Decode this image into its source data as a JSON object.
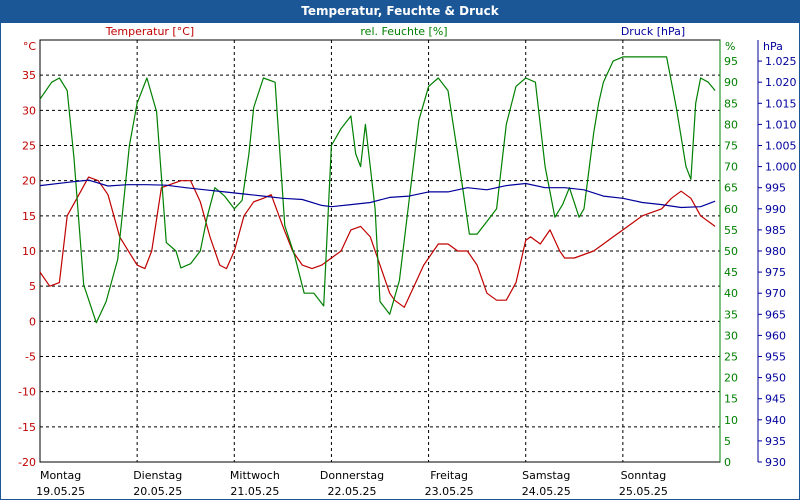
{
  "window": {
    "title": "Temperatur, Feuchte & Druck"
  },
  "colors": {
    "temperature": "#c00000",
    "humidity": "#008000",
    "pressure": "#00009b",
    "grid": "#000000",
    "title_bg": "#1b5796"
  },
  "chart_data": {
    "type": "line",
    "title": "Temperatur, Feuchte & Druck",
    "legend": [
      "Temperatur [°C]",
      "rel. Feuchte [%]",
      "Druck [hPa]"
    ],
    "x_days": [
      {
        "day": "Montag",
        "date": "19.05.25"
      },
      {
        "day": "Dienstag",
        "date": "20.05.25"
      },
      {
        "day": "Mittwoch",
        "date": "21.05.25"
      },
      {
        "day": "Donnerstag",
        "date": "22.05.25"
      },
      {
        "day": "Freitag",
        "date": "23.05.25"
      },
      {
        "day": "Samstag",
        "date": "24.05.25"
      },
      {
        "day": "Sonntag",
        "date": "25.05.25"
      }
    ],
    "xlim": [
      0,
      7
    ],
    "axes": {
      "temperature": {
        "unit": "°C",
        "ylim": [
          -20,
          40
        ],
        "ticks": [
          -20,
          -15,
          -10,
          -5,
          0,
          5,
          10,
          15,
          20,
          25,
          30,
          35
        ]
      },
      "humidity": {
        "unit": "%",
        "ylim": [
          0,
          100
        ],
        "ticks": [
          0,
          5,
          10,
          15,
          20,
          25,
          30,
          35,
          40,
          45,
          50,
          55,
          60,
          65,
          70,
          75,
          80,
          85,
          90,
          95
        ]
      },
      "pressure": {
        "unit": "hPa",
        "ylim": [
          930,
          1030
        ],
        "ticks": [
          "930",
          "935",
          "940",
          "945",
          "950",
          "955",
          "960",
          "965",
          "970",
          "975",
          "980",
          "985",
          "990",
          "995",
          "1.000",
          "1.005",
          "1.010",
          "1.015",
          "1.020",
          "1.025"
        ]
      }
    },
    "series": [
      {
        "name": "Temperatur [°C]",
        "axis": "temperature",
        "x": [
          0,
          0.1,
          0.2,
          0.28,
          0.38,
          0.5,
          0.6,
          0.7,
          0.82,
          1.0,
          1.08,
          1.15,
          1.25,
          1.35,
          1.45,
          1.55,
          1.65,
          1.75,
          1.85,
          1.92,
          2.0,
          2.1,
          2.2,
          2.3,
          2.38,
          2.5,
          2.6,
          2.7,
          2.8,
          2.9,
          3.0,
          3.1,
          3.2,
          3.3,
          3.4,
          3.5,
          3.6,
          3.65,
          3.75,
          3.85,
          3.95,
          4.1,
          4.2,
          4.3,
          4.4,
          4.5,
          4.6,
          4.7,
          4.8,
          4.9,
          5.0,
          5.05,
          5.15,
          5.25,
          5.35,
          5.4,
          5.5,
          5.6,
          5.7,
          5.8,
          5.9,
          6.0,
          6.1,
          6.2,
          6.3,
          6.4,
          6.5,
          6.6,
          6.7,
          6.8,
          6.9,
          6.95
        ],
        "values": [
          7,
          5,
          5.5,
          15,
          17.5,
          20.5,
          20,
          18,
          12,
          8,
          7.5,
          10,
          19,
          19.5,
          20,
          20,
          17,
          12,
          8,
          7.5,
          10,
          15,
          17,
          17.5,
          18,
          13.5,
          10,
          8,
          7.5,
          8,
          9,
          10,
          13,
          13.5,
          12,
          8,
          4,
          3,
          2,
          5,
          8,
          11,
          11,
          10,
          10,
          8,
          4,
          3,
          3,
          5.5,
          11.5,
          12,
          11,
          13,
          10,
          9,
          9,
          9.5,
          10,
          11,
          12,
          13,
          14,
          15,
          15.5,
          16,
          17.5,
          18.5,
          17.5,
          15,
          14,
          13.5
        ]
      },
      {
        "name": "rel. Feuchte [%]",
        "axis": "humidity",
        "x": [
          0,
          0.12,
          0.2,
          0.28,
          0.35,
          0.45,
          0.58,
          0.68,
          0.8,
          0.92,
          1.0,
          1.1,
          1.2,
          1.3,
          1.4,
          1.45,
          1.55,
          1.65,
          1.72,
          1.8,
          1.9,
          2.0,
          2.08,
          2.15,
          2.2,
          2.3,
          2.42,
          2.52,
          2.62,
          2.72,
          2.82,
          2.92,
          3.0,
          3.1,
          3.2,
          3.25,
          3.3,
          3.35,
          3.45,
          3.5,
          3.6,
          3.7,
          3.8,
          3.9,
          4.0,
          4.1,
          4.2,
          4.3,
          4.42,
          4.5,
          4.6,
          4.7,
          4.8,
          4.9,
          5.0,
          5.1,
          5.2,
          5.3,
          5.38,
          5.45,
          5.55,
          5.6,
          5.7,
          5.75,
          5.8,
          5.9,
          6.0,
          6.15,
          6.3,
          6.45,
          6.55,
          6.65,
          6.7,
          6.75,
          6.8,
          6.88,
          6.95
        ],
        "values": [
          86,
          90,
          91,
          88,
          72,
          42,
          33,
          38,
          48,
          75,
          85,
          91,
          83,
          52,
          50,
          46,
          47,
          50,
          58,
          65,
          63,
          60,
          62,
          73,
          84,
          91,
          90,
          56,
          49,
          40,
          40,
          37,
          75,
          79,
          82,
          73,
          70,
          80,
          60,
          38,
          35,
          43,
          62,
          81,
          89,
          91,
          88,
          73,
          54,
          54,
          57,
          60,
          80,
          89,
          91,
          90,
          70,
          58,
          61,
          65,
          58,
          60,
          78,
          85,
          90,
          95,
          96,
          96,
          96,
          96,
          84,
          70,
          67,
          85,
          91,
          90,
          88
        ]
      },
      {
        "name": "Druck [hPa]",
        "axis": "pressure",
        "x": [
          0,
          0.3,
          0.5,
          0.7,
          0.9,
          1.1,
          1.3,
          1.5,
          1.7,
          1.9,
          2.1,
          2.3,
          2.5,
          2.7,
          2.9,
          3.0,
          3.2,
          3.4,
          3.6,
          3.8,
          4.0,
          4.2,
          4.4,
          4.6,
          4.8,
          5.0,
          5.2,
          5.4,
          5.6,
          5.8,
          6.0,
          6.2,
          6.4,
          6.6,
          6.8,
          6.95
        ],
        "values": [
          995.5,
          996.3,
          996.8,
          995.4,
          995.7,
          995.7,
          995.6,
          995,
          994.5,
          994,
          993.5,
          993,
          992.5,
          992.2,
          990.8,
          990.5,
          991,
          991.5,
          992.7,
          993,
          994,
          994,
          995,
          994.5,
          995.5,
          996,
          995,
          995,
          994.5,
          993,
          992.5,
          991.5,
          991,
          990.3,
          990.5,
          991.8
        ]
      }
    ]
  }
}
